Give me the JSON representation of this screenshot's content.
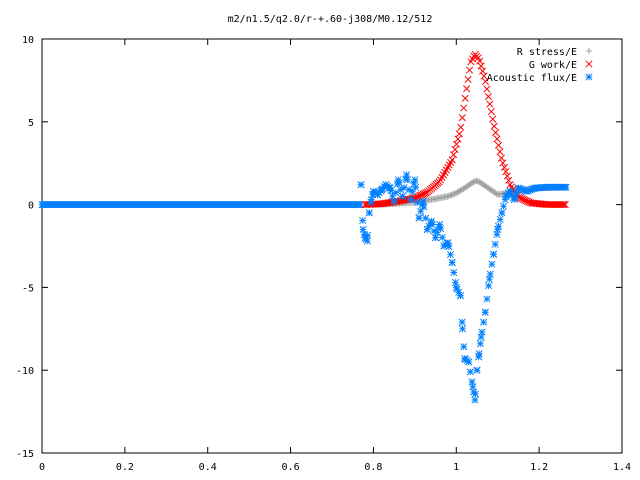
{
  "chart_data": {
    "type": "scatter",
    "title": "m2/n1.5/q2.0/r-+.60-j308/M0.12/512",
    "xlabel": "",
    "ylabel": "",
    "xlim": [
      0,
      1.4
    ],
    "ylim": [
      -15,
      10
    ],
    "x_ticks": [
      "0",
      "0.2",
      "0.4",
      "0.6",
      "0.8",
      "1",
      "1.2",
      "1.4"
    ],
    "y_ticks": [
      "10",
      "5",
      "0",
      "-5",
      "-10",
      "-15"
    ],
    "grid": false,
    "legend_position": "top-right",
    "series": [
      {
        "name": "R stress/E",
        "marker": "plus",
        "color": "#a0a0a0",
        "points": [
          [
            0.8,
            0.0
          ],
          [
            0.85,
            0.05
          ],
          [
            0.9,
            0.15
          ],
          [
            0.95,
            0.35
          ],
          [
            0.98,
            0.5
          ],
          [
            1.0,
            0.7
          ],
          [
            1.02,
            1.0
          ],
          [
            1.04,
            1.35
          ],
          [
            1.05,
            1.45
          ],
          [
            1.06,
            1.3
          ],
          [
            1.08,
            0.95
          ],
          [
            1.1,
            0.6
          ],
          [
            1.12,
            0.7
          ],
          [
            1.15,
            0.85
          ],
          [
            1.2,
            1.0
          ],
          [
            1.265,
            1.05
          ]
        ]
      },
      {
        "name": "G work/E",
        "marker": "cross",
        "color": "#ff0000",
        "points": [
          [
            0.78,
            0.0
          ],
          [
            0.82,
            0.05
          ],
          [
            0.86,
            0.2
          ],
          [
            0.9,
            0.4
          ],
          [
            0.93,
            0.75
          ],
          [
            0.96,
            1.4
          ],
          [
            0.99,
            2.7
          ],
          [
            1.01,
            4.5
          ],
          [
            1.025,
            7.0
          ],
          [
            1.035,
            8.6
          ],
          [
            1.045,
            9.1
          ],
          [
            1.055,
            8.8
          ],
          [
            1.07,
            7.5
          ],
          [
            1.09,
            4.9
          ],
          [
            1.11,
            2.7
          ],
          [
            1.13,
            1.2
          ],
          [
            1.15,
            0.45
          ],
          [
            1.18,
            0.1
          ],
          [
            1.22,
            0.0
          ],
          [
            1.265,
            0.0
          ]
        ]
      },
      {
        "name": "Acoustic flux/E",
        "marker": "star",
        "color": "#0080ff",
        "points": [
          [
            0.77,
            1.2
          ],
          [
            0.775,
            -1.5
          ],
          [
            0.78,
            -2.0
          ],
          [
            0.785,
            -2.2
          ],
          [
            0.79,
            -0.5
          ],
          [
            0.795,
            0.3
          ],
          [
            0.8,
            0.8
          ],
          [
            0.81,
            0.6
          ],
          [
            0.82,
            0.9
          ],
          [
            0.83,
            1.2
          ],
          [
            0.84,
            1.0
          ],
          [
            0.85,
            0.2
          ],
          [
            0.86,
            1.5
          ],
          [
            0.87,
            0.5
          ],
          [
            0.88,
            1.8
          ],
          [
            0.89,
            0.3
          ],
          [
            0.9,
            1.5
          ],
          [
            0.91,
            -0.8
          ],
          [
            0.92,
            0.2
          ],
          [
            0.93,
            -1.5
          ],
          [
            0.94,
            -1.0
          ],
          [
            0.95,
            -2.0
          ],
          [
            0.96,
            -1.2
          ],
          [
            0.97,
            -2.5
          ],
          [
            0.98,
            -2.3
          ],
          [
            0.99,
            -3.5
          ],
          [
            1.0,
            -5.0
          ],
          [
            1.01,
            -5.5
          ],
          [
            1.015,
            -7.5
          ],
          [
            1.02,
            -9.3
          ],
          [
            1.03,
            -9.5
          ],
          [
            1.04,
            -11.0
          ],
          [
            1.045,
            -11.8
          ],
          [
            1.05,
            -10.0
          ],
          [
            1.055,
            -9.0
          ],
          [
            1.06,
            -8.0
          ],
          [
            1.07,
            -6.5
          ],
          [
            1.08,
            -4.5
          ],
          [
            1.09,
            -3.0
          ],
          [
            1.1,
            -1.5
          ],
          [
            1.11,
            -0.5
          ],
          [
            1.12,
            0.5
          ],
          [
            1.13,
            0.8
          ],
          [
            1.14,
            0.3
          ],
          [
            1.15,
            1.0
          ],
          [
            1.17,
            0.8
          ],
          [
            1.19,
            1.0
          ],
          [
            1.22,
            1.05
          ],
          [
            1.265,
            1.05
          ]
        ]
      }
    ]
  }
}
